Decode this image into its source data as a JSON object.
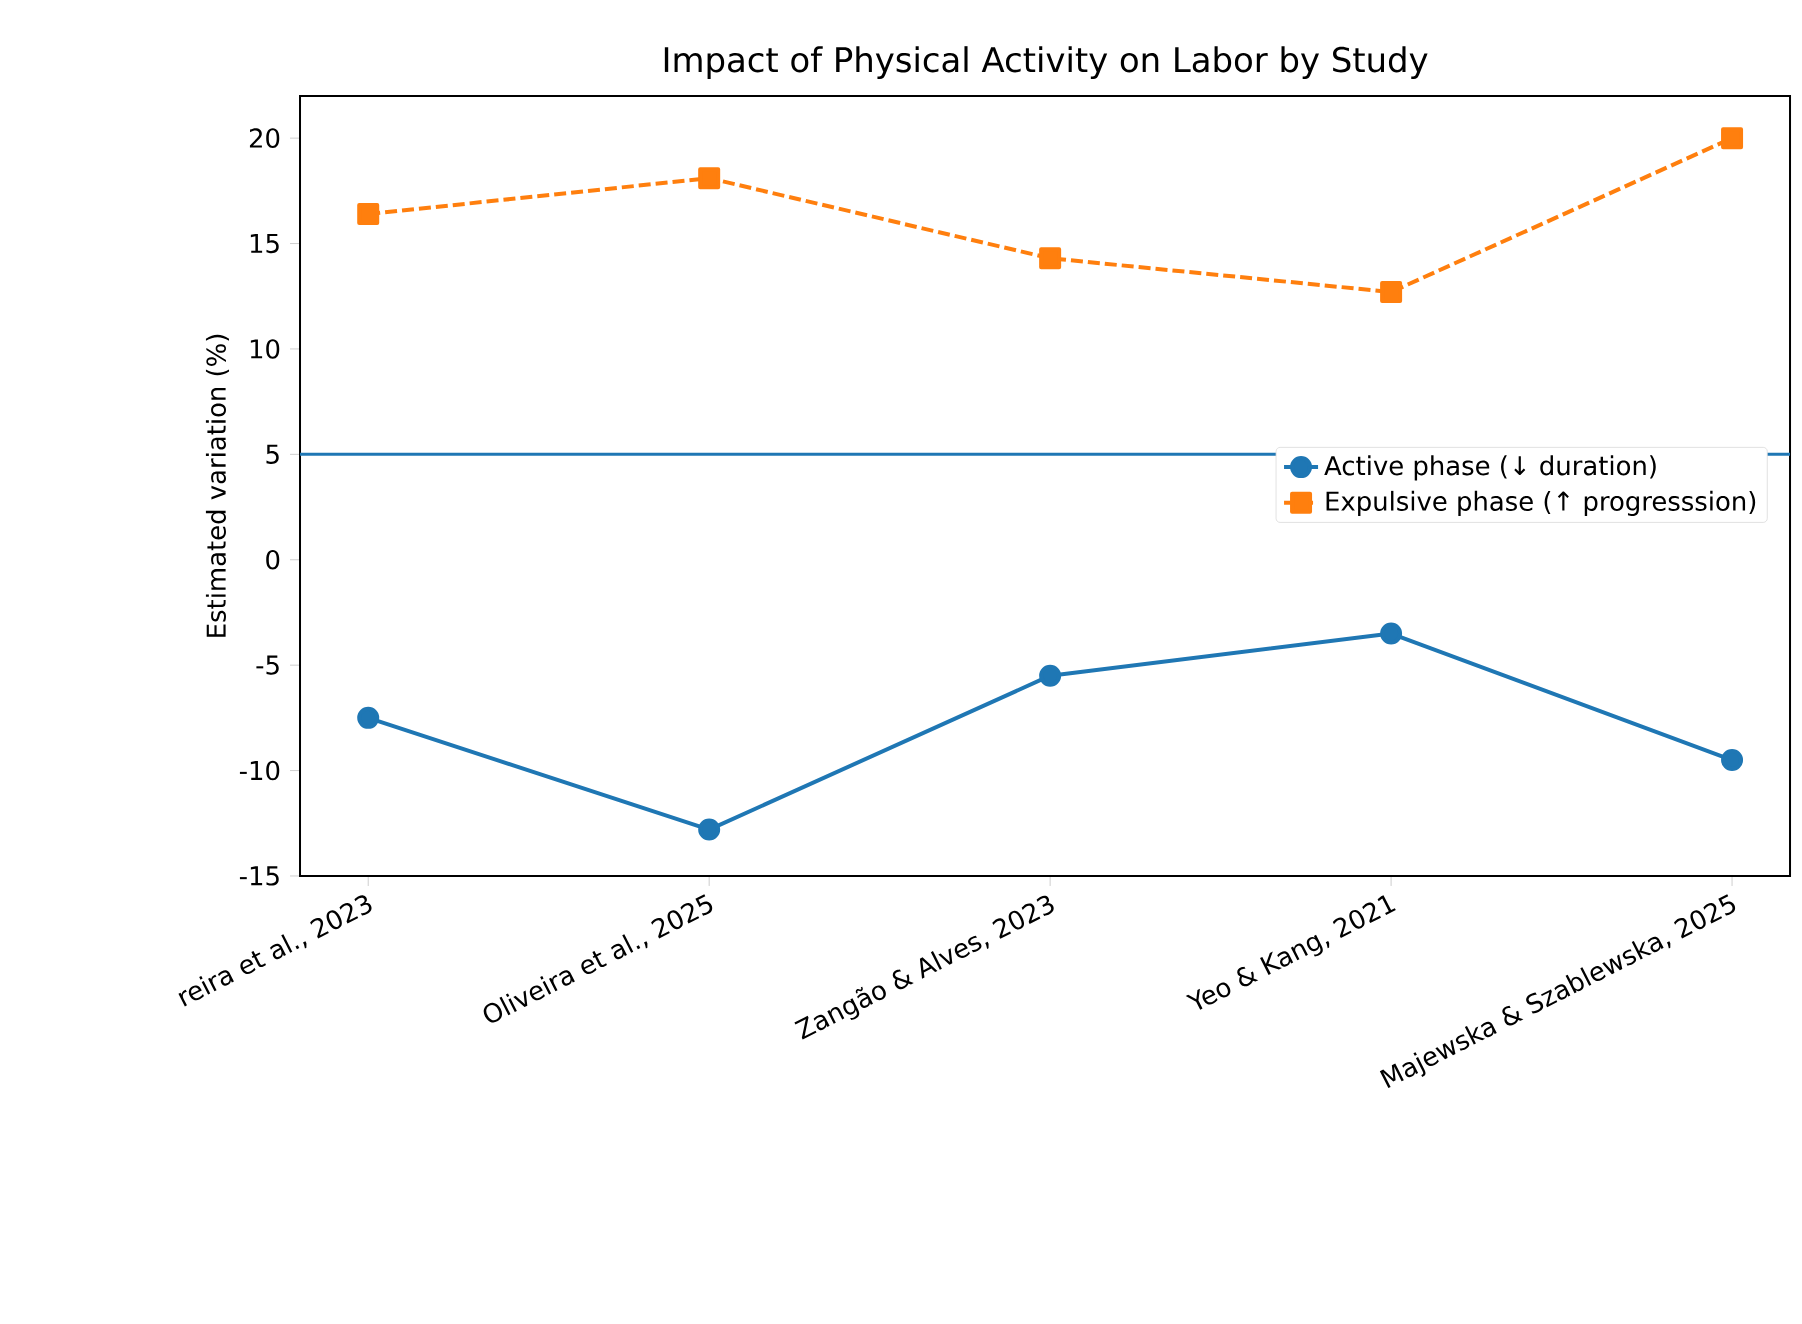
{
  "chart_data": {
    "type": "line",
    "title": "Impact of Physical Activity on Labor by Study",
    "ylabel": "Estimated variation (%)",
    "categories": [
      "reira et al., 2023",
      "Oliveira et al., 2025",
      "Zangão & Alves, 2023",
      "Yeo & Kang, 2021",
      "Majewska & Szablewska, 2025"
    ],
    "series": [
      {
        "name": "Active phase (↓ duration)",
        "color": "#1f77b4",
        "marker": "circle",
        "line_style": "solid",
        "values": [
          -7.5,
          -12.8,
          -5.5,
          -3.5,
          -9.5
        ]
      },
      {
        "name": "Expulsive phase (↑ progresssion)",
        "color": "#ff7f0e",
        "marker": "square",
        "line_style": "dashed",
        "values": [
          16.4,
          18.1,
          14.3,
          12.7,
          20.0
        ]
      }
    ],
    "ylim": [
      -15,
      22
    ],
    "yticks": [
      -15,
      -10,
      -5,
      0,
      5,
      10,
      15,
      20
    ],
    "ref_lines": [
      {
        "axis": "y",
        "value": 5,
        "color": "#1f77b4",
        "line_style": "solid"
      }
    ],
    "legend": "right",
    "grid": false
  }
}
